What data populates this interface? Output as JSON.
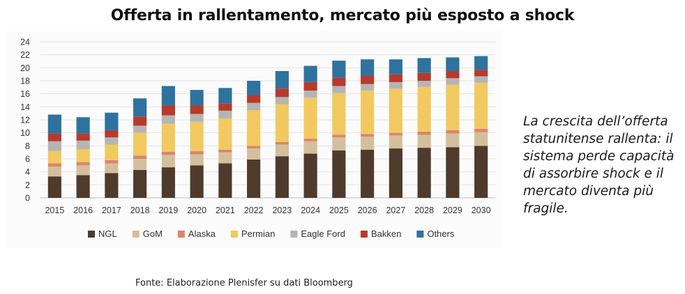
{
  "title": "Offerta in rallentamento, mercato più esposto a shock",
  "side_note": "La crescita dell’offerta statunitense rallenta: il sistema perde capacità di assorbire shock e il mercato diventa più fragile.",
  "source": "Fonte: Elaborazione Plenisfer su dati Bloomberg",
  "chart_data": {
    "type": "bar",
    "stacked": true,
    "title": "",
    "xlabel": "",
    "ylabel": "",
    "ylim": [
      0,
      24
    ],
    "yticks": [
      0,
      2,
      4,
      6,
      8,
      10,
      12,
      14,
      16,
      18,
      20,
      22,
      24
    ],
    "grid": true,
    "legend_position": "bottom",
    "categories": [
      "2015",
      "2016",
      "2017",
      "2018",
      "2019",
      "2020",
      "2021",
      "2022",
      "2023",
      "2024",
      "2025",
      "2026",
      "2027",
      "2028",
      "2029",
      "2030"
    ],
    "series": [
      {
        "name": "NGL",
        "color": "#4e3b2c",
        "values": [
          3.3,
          3.5,
          3.8,
          4.3,
          4.7,
          5.0,
          5.3,
          5.9,
          6.4,
          6.8,
          7.3,
          7.4,
          7.6,
          7.7,
          7.8,
          8.0
        ]
      },
      {
        "name": "GoM",
        "color": "#d4bf9c",
        "values": [
          1.5,
          1.5,
          1.5,
          1.7,
          1.9,
          1.7,
          1.7,
          1.7,
          1.8,
          1.9,
          2.0,
          2.0,
          2.0,
          2.0,
          2.1,
          2.1
        ]
      },
      {
        "name": "Alaska",
        "color": "#d9856a",
        "values": [
          0.5,
          0.5,
          0.5,
          0.5,
          0.5,
          0.5,
          0.4,
          0.4,
          0.4,
          0.4,
          0.4,
          0.4,
          0.4,
          0.5,
          0.5,
          0.5
        ]
      },
      {
        "name": "Permian",
        "color": "#f2c960",
        "values": [
          1.9,
          2.0,
          2.4,
          3.5,
          4.3,
          4.5,
          4.8,
          5.5,
          5.8,
          6.3,
          6.4,
          6.7,
          6.8,
          6.9,
          7.0,
          7.1
        ]
      },
      {
        "name": "Eagle Ford",
        "color": "#b5b5b5",
        "values": [
          1.5,
          1.3,
          1.1,
          1.1,
          1.3,
          1.2,
          1.2,
          1.1,
          1.1,
          1.1,
          1.1,
          1.0,
          1.0,
          0.9,
          1.0,
          1.0
        ]
      },
      {
        "name": "Bakken",
        "color": "#b83a2a",
        "values": [
          1.2,
          1.1,
          1.1,
          1.4,
          1.5,
          1.3,
          1.1,
          1.2,
          1.3,
          1.3,
          1.3,
          1.3,
          1.2,
          1.2,
          1.1,
          1.0
        ]
      },
      {
        "name": "Others",
        "color": "#2e72a0",
        "values": [
          2.9,
          2.5,
          2.7,
          2.8,
          3.0,
          2.4,
          2.4,
          2.2,
          2.7,
          2.5,
          2.6,
          2.5,
          2.3,
          2.3,
          2.1,
          2.1
        ]
      }
    ]
  }
}
